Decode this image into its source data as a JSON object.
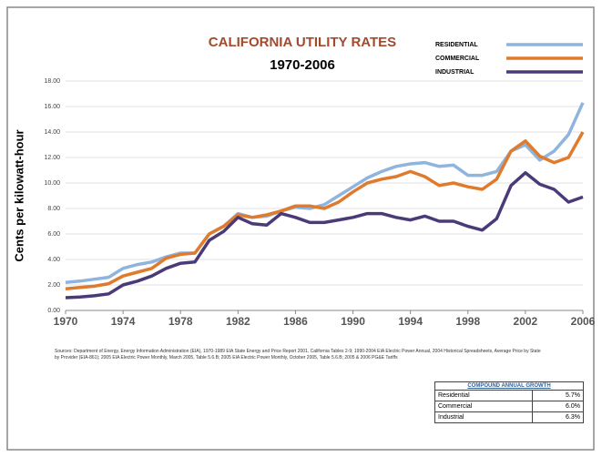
{
  "chart_data": {
    "type": "line",
    "title": "CALIFORNIA UTILITY RATES",
    "subtitle": "1970-2006",
    "y_label": "Cents per kilowatt-hour",
    "x": [
      1970,
      1971,
      1972,
      1973,
      1974,
      1975,
      1976,
      1977,
      1978,
      1979,
      1980,
      1981,
      1982,
      1983,
      1984,
      1985,
      1986,
      1987,
      1988,
      1989,
      1990,
      1991,
      1992,
      1993,
      1994,
      1995,
      1996,
      1997,
      1998,
      1999,
      2000,
      2001,
      2002,
      2003,
      2004,
      2005,
      2006
    ],
    "xlim": [
      1970,
      2006
    ],
    "xticks": [
      1970,
      1974,
      1978,
      1982,
      1986,
      1990,
      1994,
      1998,
      2002,
      2006
    ],
    "ylim": [
      0,
      18
    ],
    "yticks": [
      {
        "value": 0,
        "label": "0.00"
      },
      {
        "value": 2,
        "label": "2.00"
      },
      {
        "value": 4,
        "label": "4.00"
      },
      {
        "value": 6,
        "label": "6.00"
      },
      {
        "value": 8,
        "label": "8.00"
      },
      {
        "value": 10,
        "label": "10.00"
      },
      {
        "value": 12,
        "label": "12.00"
      },
      {
        "value": 14,
        "label": "14.00"
      },
      {
        "value": 16,
        "label": "16.00"
      },
      {
        "value": 18,
        "label": "18.00"
      }
    ],
    "grid": true,
    "legend": "top-right",
    "series": [
      {
        "name": "RESIDENTIAL",
        "color": "#8fb4de",
        "values": [
          2.2,
          2.3,
          2.45,
          2.6,
          3.3,
          3.6,
          3.8,
          4.2,
          4.5,
          4.5,
          6.0,
          6.6,
          7.6,
          7.3,
          7.4,
          7.8,
          8.1,
          8.0,
          8.3,
          9.0,
          9.7,
          10.4,
          10.9,
          11.3,
          11.5,
          11.6,
          11.3,
          11.4,
          10.6,
          10.6,
          10.9,
          12.5,
          13.0,
          11.8,
          12.5,
          13.8,
          16.3
        ]
      },
      {
        "name": "COMMERCIAL",
        "color": "#e07b2e",
        "values": [
          1.7,
          1.8,
          1.9,
          2.1,
          2.7,
          3.0,
          3.3,
          4.1,
          4.4,
          4.5,
          6.0,
          6.6,
          7.5,
          7.3,
          7.5,
          7.8,
          8.2,
          8.2,
          8.0,
          8.5,
          9.3,
          10.0,
          10.3,
          10.5,
          10.9,
          10.5,
          9.8,
          10.0,
          9.7,
          9.5,
          10.3,
          12.5,
          13.3,
          12.1,
          11.6,
          12.0,
          14.0
        ]
      },
      {
        "name": "INDUSTRIAL",
        "color": "#4b3a78",
        "values": [
          1.0,
          1.05,
          1.15,
          1.3,
          2.0,
          2.3,
          2.7,
          3.3,
          3.7,
          3.8,
          5.5,
          6.2,
          7.3,
          6.8,
          6.7,
          7.6,
          7.3,
          6.9,
          6.9,
          7.1,
          7.3,
          7.6,
          7.6,
          7.3,
          7.1,
          7.4,
          7.0,
          7.0,
          6.6,
          6.3,
          7.2,
          9.8,
          10.8,
          9.9,
          9.5,
          8.5,
          8.9
        ]
      }
    ],
    "source": "Sources: Department of Energy, Energy Information Administration (EIA), 1970-1989 EIA State Energy and Price Report 2001, California Tables 2-9; 1990-2004 EIA Electric Power Annual, 2004 Historical Spreadsheets, Average Price by State by Provider (EIA-861); 2005 EIA Electric Power Monthly, March 2005, Table 5.6.B; 2005 EIA Electric Power Monthly, October 2005, Table 5.6.B; 2005 & 2006 PG&E Tariffs"
  },
  "growth_table": {
    "title": "COMPOUND ANNUAL GROWTH",
    "rows": [
      [
        "Residential",
        "5.7%"
      ],
      [
        "Commercial",
        "6.0%"
      ],
      [
        "Industrial",
        "6.3%"
      ]
    ]
  }
}
